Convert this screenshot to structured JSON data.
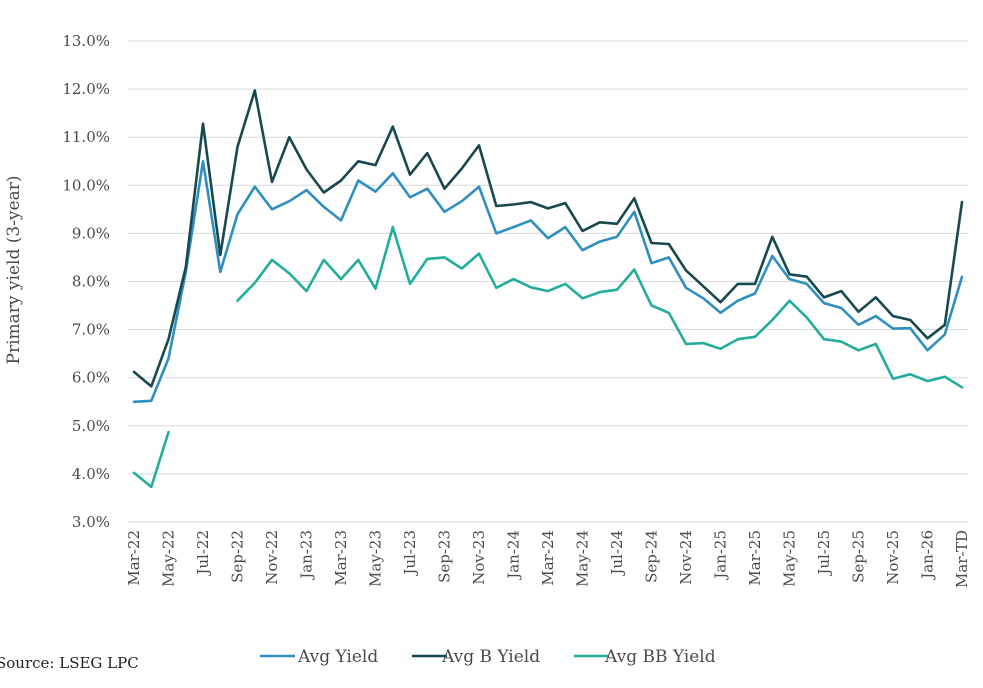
{
  "chart_data": {
    "type": "line",
    "ylabel": "Primary yield (3-year)",
    "xlabel": "",
    "ylim": [
      3.0,
      13.0
    ],
    "yticks": [
      "3.0%",
      "4.0%",
      "5.0%",
      "6.0%",
      "7.0%",
      "8.0%",
      "9.0%",
      "10.0%",
      "11.0%",
      "12.0%",
      "13.0%"
    ],
    "grid": true,
    "legend": "bottom",
    "categories": [
      "Mar-22",
      "Apr-22",
      "May-22",
      "Jun-22",
      "Jul-22",
      "Aug-22",
      "Sep-22",
      "Oct-22",
      "Nov-22",
      "Dec-22",
      "Jan-23",
      "Feb-23",
      "Mar-23",
      "Apr-23",
      "May-23",
      "Jun-23",
      "Jul-23",
      "Aug-23",
      "Sep-23",
      "Oct-23",
      "Nov-23",
      "Dec-23",
      "Jan-24",
      "Feb-24",
      "Mar-24",
      "Apr-24",
      "May-24",
      "Jun-24",
      "Jul-24",
      "Aug-24",
      "Sep-24",
      "Oct-24",
      "Nov-24",
      "Dec-24",
      "Jan-25",
      "Feb-25",
      "Mar-25",
      "Apr-25",
      "May-25",
      "Jun-25",
      "Jul-25",
      "Aug-25",
      "Sep-25",
      "Oct-25",
      "Nov-25",
      "Dec-25",
      "Jan-26",
      "Feb-26",
      "Mar-TD"
    ],
    "x_tick_labels": [
      "Mar-22",
      "May-22",
      "Jul-22",
      "Sep-22",
      "Nov-22",
      "Jan-23",
      "Mar-23",
      "May-23",
      "Jul-23",
      "Sep-23",
      "Nov-23",
      "Jan-24",
      "Mar-24",
      "May-24",
      "Jul-24",
      "Sep-24",
      "Nov-24",
      "Jan-25",
      "Mar-25",
      "May-25",
      "Jul-25",
      "Sep-25",
      "Nov-25",
      "Jan-26",
      "Mar-TD"
    ],
    "series": [
      {
        "name": "Avg Yield",
        "color": "#2f8fc0",
        "values": [
          5.5,
          5.52,
          6.4,
          8.2,
          10.5,
          8.2,
          9.4,
          9.97,
          9.5,
          9.67,
          9.9,
          9.55,
          9.27,
          10.1,
          9.87,
          10.25,
          9.75,
          9.93,
          9.45,
          9.67,
          9.97,
          9.0,
          9.13,
          9.27,
          8.9,
          9.13,
          8.65,
          8.83,
          8.93,
          9.45,
          8.38,
          8.5,
          7.87,
          7.65,
          7.35,
          7.6,
          7.75,
          8.53,
          8.05,
          7.95,
          7.55,
          7.45,
          7.1,
          7.28,
          7.02,
          7.03,
          6.57,
          6.9,
          8.1
        ]
      },
      {
        "name": "Avg B Yield",
        "color": "#17494f",
        "values": [
          6.12,
          5.82,
          6.8,
          8.3,
          11.28,
          8.55,
          10.8,
          11.97,
          10.07,
          11.0,
          10.33,
          9.85,
          10.1,
          10.5,
          10.42,
          11.22,
          10.22,
          10.67,
          9.93,
          10.35,
          10.83,
          9.57,
          9.6,
          9.65,
          9.52,
          9.63,
          9.05,
          9.23,
          9.2,
          9.73,
          8.8,
          8.78,
          8.23,
          7.9,
          7.57,
          7.95,
          7.95,
          8.93,
          8.15,
          8.1,
          7.67,
          7.8,
          7.37,
          7.67,
          7.28,
          7.2,
          6.82,
          7.1,
          9.65
        ]
      },
      {
        "name": "Avg BB Yield",
        "color": "#22ad9c",
        "values": [
          4.02,
          3.73,
          4.87,
          null,
          null,
          null,
          7.6,
          7.97,
          8.45,
          8.17,
          7.8,
          8.45,
          8.05,
          8.45,
          7.85,
          9.13,
          7.95,
          8.47,
          8.5,
          8.27,
          8.58,
          7.87,
          8.05,
          7.88,
          7.8,
          7.95,
          7.65,
          7.78,
          7.83,
          8.25,
          7.5,
          7.35,
          6.7,
          6.72,
          6.6,
          6.8,
          6.85,
          7.2,
          7.6,
          7.25,
          6.8,
          6.75,
          6.57,
          6.7,
          5.98,
          6.07,
          5.93,
          6.02,
          5.8
        ]
      }
    ]
  },
  "source_text": "Source: LSEG LPC"
}
